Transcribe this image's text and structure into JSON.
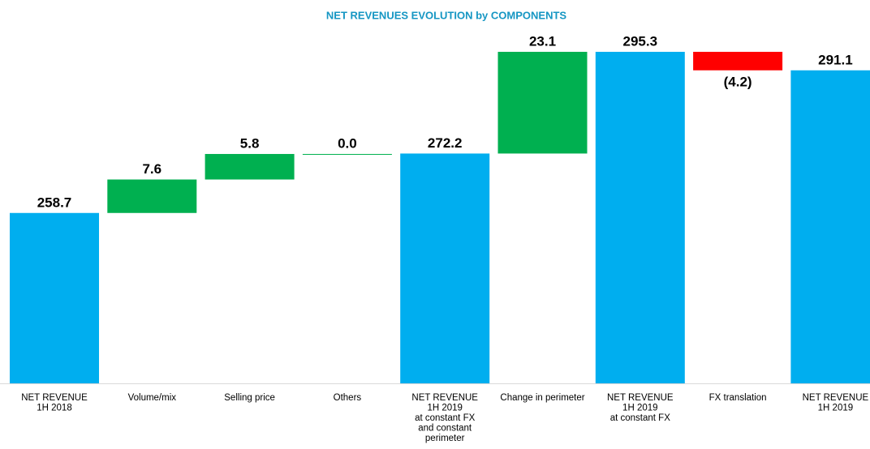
{
  "chart_data": {
    "type": "waterfall",
    "title": "NET REVENUES EVOLUTION by COMPONENTS",
    "categories": [
      [
        "NET REVENUE",
        "1H 2018"
      ],
      [
        "Volume/mix"
      ],
      [
        "Selling price"
      ],
      [
        "Others"
      ],
      [
        "NET REVENUE",
        "1H 2019",
        "at constant FX",
        "and constant",
        "perimeter"
      ],
      [
        "Change in perimeter"
      ],
      [
        "NET REVENUE",
        "1H 2019",
        "at constant FX"
      ],
      [
        "FX translation"
      ],
      [
        "NET REVENUE",
        "1H 2019"
      ]
    ],
    "measure": [
      "absolute",
      "relative",
      "relative",
      "relative",
      "absolute",
      "relative",
      "absolute",
      "relative",
      "absolute"
    ],
    "values": [
      258.7,
      7.6,
      5.8,
      0.0,
      272.2,
      23.1,
      295.3,
      -4.2,
      291.1
    ],
    "value_labels": [
      "258.7",
      "7.6",
      "5.8",
      "0.0",
      "272.2",
      "23.1",
      "295.3",
      "(4.2)",
      "291.1"
    ],
    "colors": {
      "total": "#00aeef",
      "increase": "#00b050",
      "decrease": "#ff0000"
    },
    "ylim": [
      220,
      297.5
    ]
  }
}
